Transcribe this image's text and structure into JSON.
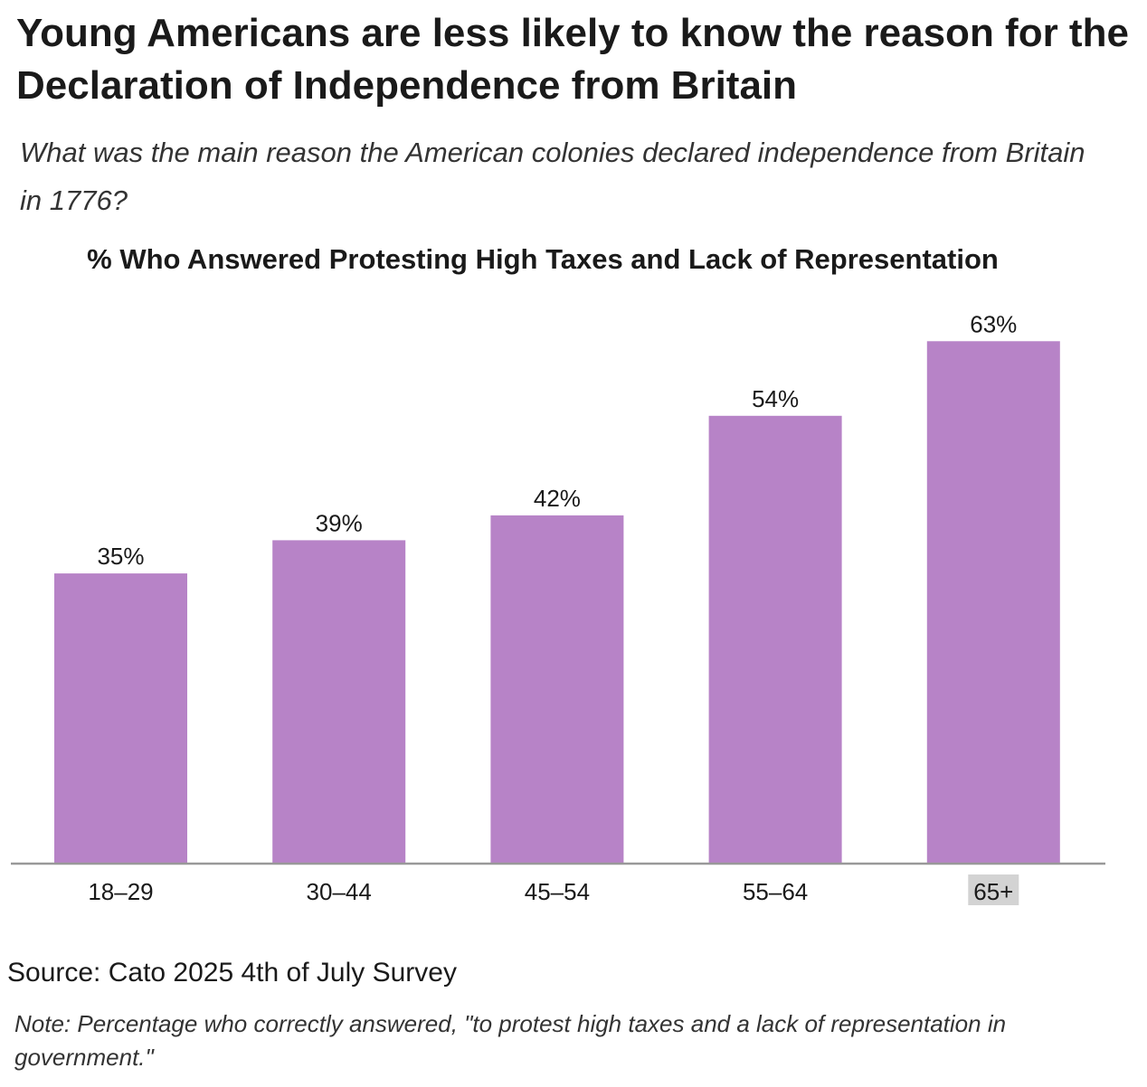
{
  "header": {
    "title": "Young Americans are less likely to know the reason for the Declaration of Independence from Britain",
    "subtitle": "What was the main reason the American colonies declared independence from Britain in 1776?"
  },
  "chart_data": {
    "type": "bar",
    "title": "% Who Answered Protesting High Taxes and Lack of Representation",
    "categories": [
      "18–29",
      "30–44",
      "45–54",
      "55–64",
      "65+"
    ],
    "values": [
      35,
      39,
      42,
      54,
      63
    ],
    "value_labels": [
      "35%",
      "39%",
      "42%",
      "54%",
      "63%"
    ],
    "xlabel": "",
    "ylabel": "",
    "ylim": [
      0,
      70
    ],
    "grid": false,
    "legend": "none",
    "bar_color": "#b783c7",
    "axis_color": "#999999",
    "highlight_category": "65+",
    "highlight_color": "#d3d3d3"
  },
  "footer": {
    "source": "Source: Cato 2025 4th of July Survey",
    "note": "Note: Percentage who correctly answered, \"to protest high taxes and a lack of representation in government.\""
  }
}
